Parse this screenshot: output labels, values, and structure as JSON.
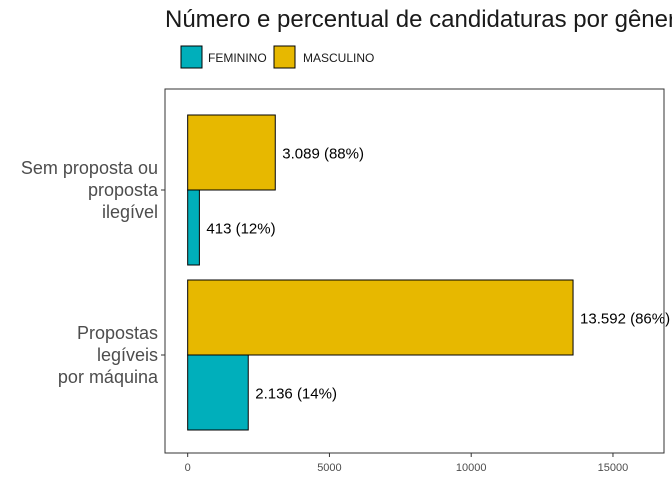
{
  "chart_data": {
    "type": "bar",
    "orientation": "horizontal",
    "title": "Número e percentual de candidaturas por gênero",
    "xlabel": "",
    "ylabel": "",
    "xlim": [
      -800,
      16800
    ],
    "x_ticks": [
      0,
      5000,
      10000,
      15000
    ],
    "x_tick_labels": [
      "0",
      "5000",
      "10000",
      "15000"
    ],
    "grid": false,
    "legend_position": "top-left",
    "categories": [
      {
        "key": "sem",
        "lines": [
          "Sem proposta ou",
          "proposta",
          "ilegível"
        ]
      },
      {
        "key": "leg",
        "lines": [
          "Propostas",
          "legíveis",
          "por máquina"
        ]
      }
    ],
    "series": [
      {
        "name": "FEMININO",
        "color": "#00AFBB",
        "values": [
          413,
          2136
        ],
        "labels": [
          "413 (12%)",
          "2.136 (14%)"
        ]
      },
      {
        "name": "MASCULINO",
        "color": "#E7B800",
        "values": [
          3089,
          13592
        ],
        "labels": [
          "3.089 (88%)",
          "13.592 (86%)"
        ]
      }
    ]
  }
}
